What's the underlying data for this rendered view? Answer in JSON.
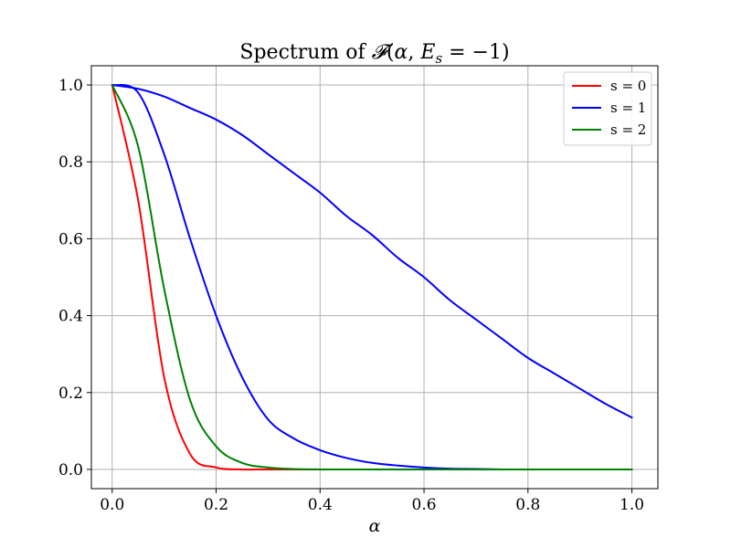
{
  "chart_data": {
    "type": "line",
    "title": "Spectrum of 𝓕(α, E_s = −1)",
    "title_parts": {
      "prefix": "Spectrum of ",
      "func": "𝓕",
      "open": "(",
      "alpha": "α",
      "comma": ", ",
      "E": "E",
      "sub": "s",
      "eq": " = −1)"
    },
    "xlabel": "α",
    "ylabel": "",
    "xlim": [
      -0.04,
      1.05
    ],
    "ylim": [
      -0.05,
      1.05
    ],
    "xticks": [
      0.0,
      0.2,
      0.4,
      0.6,
      0.8,
      1.0
    ],
    "xtick_labels": [
      "0.0",
      "0.2",
      "0.4",
      "0.6",
      "0.8",
      "1.0"
    ],
    "yticks": [
      0.0,
      0.2,
      0.4,
      0.6,
      0.8,
      1.0
    ],
    "ytick_labels": [
      "0.0",
      "0.2",
      "0.4",
      "0.6",
      "0.8",
      "1.0"
    ],
    "grid": true,
    "legend_position": "top-right",
    "x": [
      0.0,
      0.05,
      0.1,
      0.15,
      0.2,
      0.25,
      0.3,
      0.35,
      0.4,
      0.45,
      0.5,
      0.55,
      0.6,
      0.65,
      0.7,
      0.75,
      0.8,
      0.85,
      0.9,
      0.95,
      1.0
    ],
    "series": [
      {
        "name": "s = 0",
        "color": "#ff0000",
        "values": [
          1.0,
          0.7,
          0.24,
          0.04,
          0.005,
          0.0,
          0.0,
          0.0,
          0.0,
          0.0,
          0.0,
          0.0,
          0.0,
          0.0,
          0.0,
          0.0,
          0.0,
          0.0,
          0.0,
          0.0,
          0.0
        ]
      },
      {
        "name": "s = 1",
        "color": "#0000ff",
        "values": [
          1.0,
          0.99,
          0.97,
          0.94,
          0.91,
          0.87,
          0.82,
          0.77,
          0.72,
          0.66,
          0.61,
          0.55,
          0.5,
          0.44,
          0.39,
          0.34,
          0.29,
          0.25,
          0.21,
          0.17,
          0.135
        ]
      },
      {
        "name": "s = 1",
        "color": "#0000ff",
        "values": [
          1.0,
          0.98,
          0.82,
          0.6,
          0.4,
          0.24,
          0.13,
          0.08,
          0.05,
          0.03,
          0.017,
          0.01,
          0.005,
          0.002,
          0.001,
          0.0,
          0.0,
          0.0,
          0.0,
          0.0,
          0.0
        ]
      },
      {
        "name": "s = 2",
        "color": "#008000",
        "values": [
          1.0,
          0.84,
          0.47,
          0.18,
          0.06,
          0.017,
          0.005,
          0.001,
          0.0,
          0.0,
          0.0,
          0.0,
          0.0,
          0.0,
          0.0,
          0.0,
          0.0,
          0.0,
          0.0,
          0.0,
          0.0
        ]
      }
    ],
    "legend": [
      {
        "label": "s = 0",
        "color": "#ff0000"
      },
      {
        "label": "s = 1",
        "color": "#0000ff"
      },
      {
        "label": "s = 2",
        "color": "#008000"
      }
    ]
  }
}
